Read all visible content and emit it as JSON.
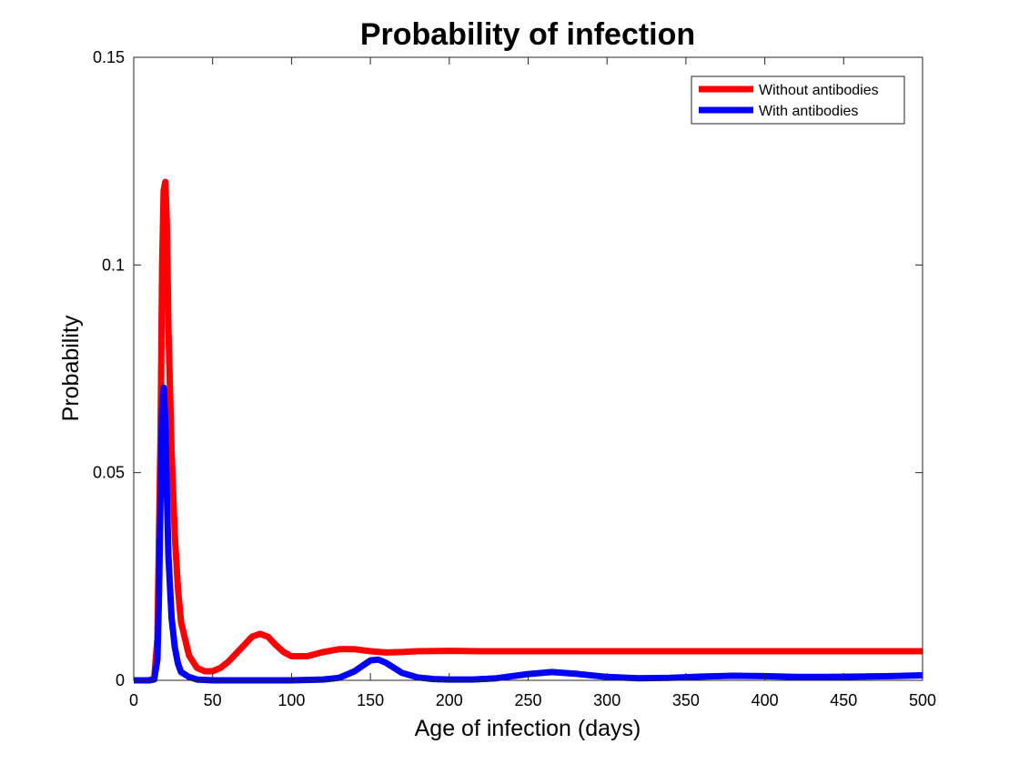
{
  "chart_data": {
    "type": "line",
    "title": "Probability of infection",
    "xlabel": "Age of infection (days)",
    "ylabel": "Probability",
    "xlim": [
      0,
      500
    ],
    "ylim": [
      0,
      0.15
    ],
    "xticks": [
      0,
      50,
      100,
      150,
      200,
      250,
      300,
      350,
      400,
      450,
      500
    ],
    "xtick_labels": [
      "0",
      "50",
      "100",
      "150",
      "200",
      "250",
      "300",
      "350",
      "400",
      "450",
      "500"
    ],
    "yticks": [
      0,
      0.05,
      0.1,
      0.15
    ],
    "ytick_labels": [
      "0",
      "0.05",
      "0.1",
      "0.15"
    ],
    "grid": false,
    "legend_position": "top-right",
    "series": [
      {
        "name": "Without antibodies",
        "color": "#ff0000",
        "points": [
          [
            0,
            0
          ],
          [
            10,
            0
          ],
          [
            13,
            0.0005
          ],
          [
            15,
            0.01
          ],
          [
            17,
            0.06
          ],
          [
            18,
            0.1
          ],
          [
            19,
            0.118
          ],
          [
            20,
            0.12
          ],
          [
            21,
            0.11
          ],
          [
            22,
            0.085
          ],
          [
            24,
            0.055
          ],
          [
            26,
            0.035
          ],
          [
            28,
            0.022
          ],
          [
            30,
            0.014
          ],
          [
            35,
            0.006
          ],
          [
            40,
            0.003
          ],
          [
            45,
            0.0022
          ],
          [
            50,
            0.0022
          ],
          [
            55,
            0.003
          ],
          [
            60,
            0.0045
          ],
          [
            65,
            0.0065
          ],
          [
            70,
            0.0085
          ],
          [
            75,
            0.0105
          ],
          [
            80,
            0.0112
          ],
          [
            85,
            0.0105
          ],
          [
            90,
            0.0085
          ],
          [
            95,
            0.0068
          ],
          [
            100,
            0.0058
          ],
          [
            110,
            0.0058
          ],
          [
            120,
            0.0068
          ],
          [
            130,
            0.0075
          ],
          [
            140,
            0.0075
          ],
          [
            150,
            0.007
          ],
          [
            160,
            0.0067
          ],
          [
            170,
            0.0068
          ],
          [
            180,
            0.007
          ],
          [
            200,
            0.0071
          ],
          [
            220,
            0.007
          ],
          [
            250,
            0.007
          ],
          [
            300,
            0.007
          ],
          [
            350,
            0.007
          ],
          [
            400,
            0.007
          ],
          [
            450,
            0.007
          ],
          [
            500,
            0.007
          ]
        ]
      },
      {
        "name": "With antibodies",
        "color": "#0000ff",
        "points": [
          [
            0,
            0
          ],
          [
            10,
            0
          ],
          [
            13,
            0.0002
          ],
          [
            15,
            0.005
          ],
          [
            16,
            0.02
          ],
          [
            17,
            0.045
          ],
          [
            18,
            0.065
          ],
          [
            19,
            0.0705
          ],
          [
            20,
            0.062
          ],
          [
            21,
            0.045
          ],
          [
            22,
            0.03
          ],
          [
            24,
            0.015
          ],
          [
            26,
            0.008
          ],
          [
            28,
            0.004
          ],
          [
            30,
            0.002
          ],
          [
            35,
            0.0008
          ],
          [
            40,
            0.0002
          ],
          [
            50,
            0
          ],
          [
            75,
            0
          ],
          [
            100,
            0
          ],
          [
            120,
            0.0002
          ],
          [
            130,
            0.0006
          ],
          [
            140,
            0.0022
          ],
          [
            145,
            0.0035
          ],
          [
            150,
            0.0048
          ],
          [
            155,
            0.005
          ],
          [
            160,
            0.0042
          ],
          [
            165,
            0.003
          ],
          [
            170,
            0.0018
          ],
          [
            180,
            0.0007
          ],
          [
            190,
            0.0003
          ],
          [
            200,
            0.0002
          ],
          [
            215,
            0.0002
          ],
          [
            230,
            0.0005
          ],
          [
            250,
            0.0015
          ],
          [
            265,
            0.002
          ],
          [
            280,
            0.0016
          ],
          [
            300,
            0.0008
          ],
          [
            320,
            0.0005
          ],
          [
            340,
            0.0006
          ],
          [
            360,
            0.0009
          ],
          [
            380,
            0.0011
          ],
          [
            400,
            0.001
          ],
          [
            420,
            0.0008
          ],
          [
            440,
            0.0008
          ],
          [
            460,
            0.0009
          ],
          [
            480,
            0.001
          ],
          [
            500,
            0.0012
          ]
        ]
      }
    ]
  }
}
